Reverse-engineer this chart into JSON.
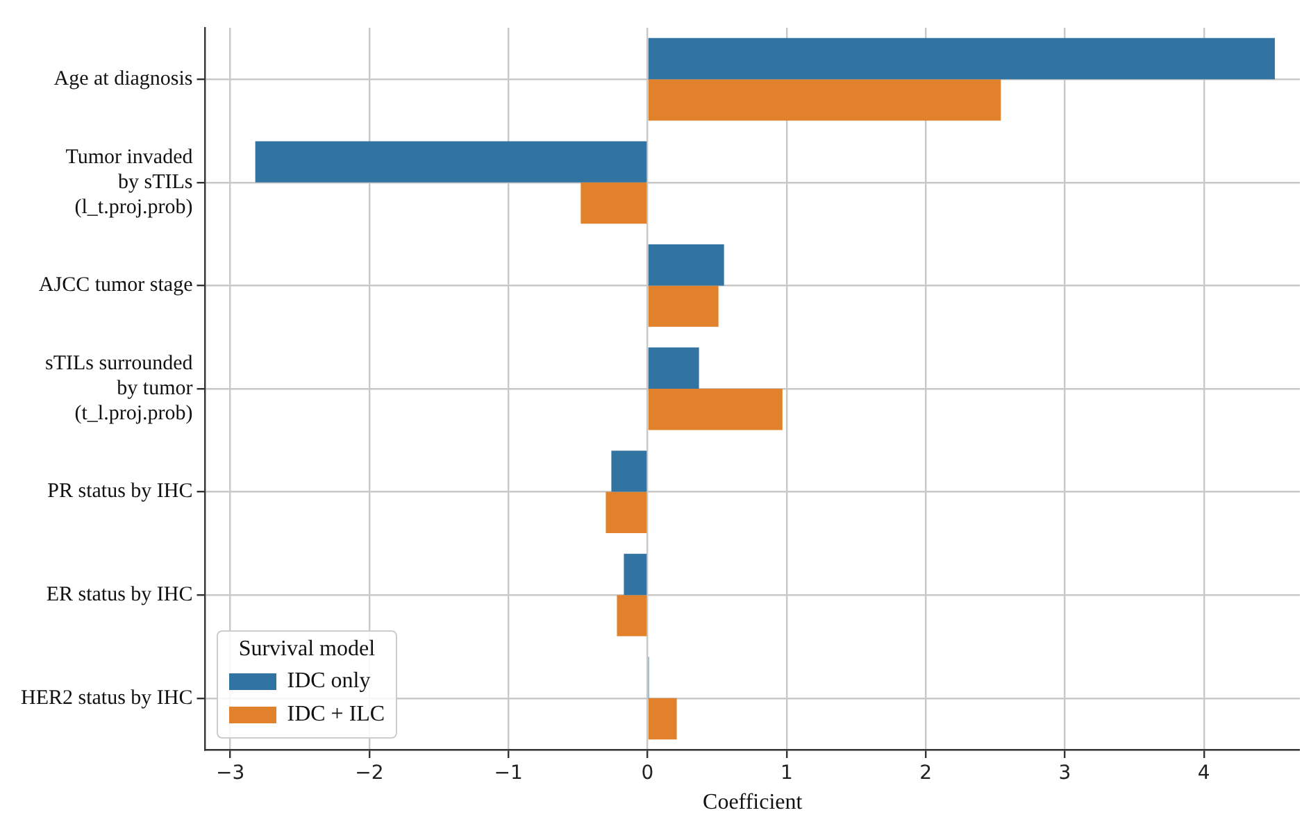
{
  "chart_data": {
    "type": "bar",
    "orientation": "horizontal",
    "xlabel": "Coefficient",
    "legend_title": "Survival model",
    "legend": "bottom left",
    "grid": true,
    "categories": [
      "Age at diagnosis",
      "Tumor invaded by sTILs (l_t.proj.prob)",
      "AJCC tumor stage",
      "sTILs surrounded by tumor (t_l.proj.prob)",
      "PR status by IHC",
      "ER status by IHC",
      "HER2 status by IHC"
    ],
    "series": [
      {
        "name": "IDC only",
        "color": "#3274a1",
        "values": [
          4.51,
          -2.82,
          0.55,
          0.37,
          -0.26,
          -0.17,
          0.01
        ]
      },
      {
        "name": "IDC + ILC",
        "color": "#e1812c",
        "values": [
          2.54,
          -0.48,
          0.51,
          0.97,
          -0.3,
          -0.22,
          0.21
        ]
      }
    ],
    "xlim": [
      -3.18,
      4.69
    ],
    "xticks": [
      -3,
      -2,
      -1,
      0,
      1,
      2,
      3,
      4
    ]
  }
}
